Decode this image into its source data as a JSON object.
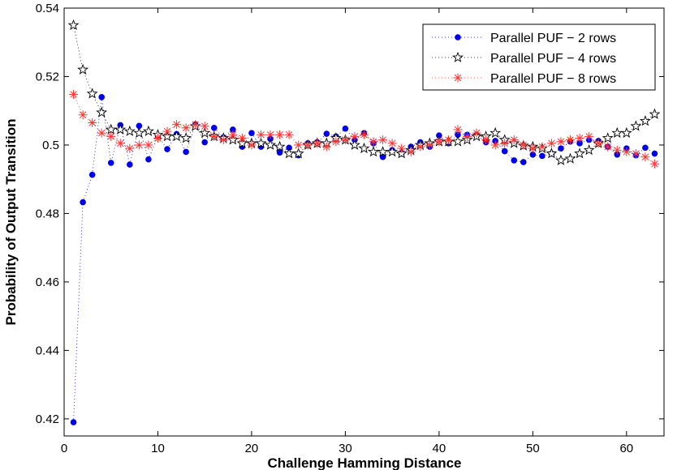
{
  "chart_data": {
    "type": "line",
    "xlabel": "Challenge Hamming Distance",
    "ylabel": "Probability of Output Transition",
    "xlim": [
      0,
      64
    ],
    "ylim": [
      0.415,
      0.54
    ],
    "xticks": [
      0,
      10,
      20,
      30,
      40,
      50,
      60
    ],
    "yticks": [
      0.42,
      0.44,
      0.46,
      0.48,
      0.5,
      0.52,
      0.54
    ],
    "xtick_labels": [
      "0",
      "10",
      "20",
      "30",
      "40",
      "50",
      "60"
    ],
    "ytick_labels": [
      "0.42",
      "0.44",
      "0.46",
      "0.48",
      "0.5",
      "0.52",
      "0.54"
    ],
    "grid": false,
    "legend_position": "top-right",
    "x": [
      1,
      2,
      3,
      4,
      5,
      6,
      7,
      8,
      9,
      10,
      11,
      12,
      13,
      14,
      15,
      16,
      17,
      18,
      19,
      20,
      21,
      22,
      23,
      24,
      25,
      26,
      27,
      28,
      29,
      30,
      31,
      32,
      33,
      34,
      35,
      36,
      37,
      38,
      39,
      40,
      41,
      42,
      43,
      44,
      45,
      46,
      47,
      48,
      49,
      50,
      51,
      52,
      53,
      54,
      55,
      56,
      57,
      58,
      59,
      60,
      61,
      62,
      63
    ],
    "series": [
      {
        "name": "Parallel PUF - 2 rows",
        "marker": "dot",
        "color": "#0000ee",
        "values": [
          0.419,
          0.4833,
          0.4913,
          0.514,
          0.4948,
          0.5058,
          0.4943,
          0.5056,
          0.4958,
          0.5027,
          0.4988,
          0.5032,
          0.498,
          0.506,
          0.5008,
          0.505,
          0.5022,
          0.5045,
          0.4995,
          0.5035,
          0.4995,
          0.5018,
          0.4978,
          0.4992,
          0.497,
          0.5005,
          0.5008,
          0.5033,
          0.5025,
          0.5048,
          0.5015,
          0.5035,
          0.5005,
          0.4965,
          0.4985,
          0.4975,
          0.4995,
          0.5008,
          0.4995,
          0.5028,
          0.5005,
          0.503,
          0.503,
          0.503,
          0.5008,
          0.5012,
          0.4982,
          0.4955,
          0.495,
          0.4972,
          0.4968,
          0.4975,
          0.499,
          0.501,
          0.5005,
          0.5015,
          0.5012,
          0.4995,
          0.4972,
          0.499,
          0.497,
          0.4992,
          0.4975
        ]
      },
      {
        "name": "Parallel PUF - 4 rows",
        "marker": "star",
        "color": "#000000",
        "values": [
          0.535,
          0.522,
          0.515,
          0.5095,
          0.5045,
          0.5045,
          0.504,
          0.5035,
          0.504,
          0.503,
          0.5025,
          0.5025,
          0.502,
          0.5055,
          0.5035,
          0.5025,
          0.502,
          0.5015,
          0.5005,
          0.5005,
          0.5005,
          0.5,
          0.4995,
          0.4975,
          0.4975,
          0.5,
          0.5005,
          0.5005,
          0.502,
          0.5015,
          0.5,
          0.499,
          0.498,
          0.498,
          0.498,
          0.4975,
          0.4985,
          0.5,
          0.5005,
          0.501,
          0.501,
          0.501,
          0.5015,
          0.5025,
          0.5025,
          0.5035,
          0.5015,
          0.5005,
          0.4998,
          0.4995,
          0.499,
          0.4975,
          0.4955,
          0.496,
          0.4975,
          0.4985,
          0.5005,
          0.502,
          0.5035,
          0.5035,
          0.5055,
          0.507,
          0.509
        ]
      },
      {
        "name": "Parallel PUF - 8 rows",
        "marker": "asterisk",
        "color": "#ff3333",
        "values": [
          0.5148,
          0.5088,
          0.5065,
          0.5035,
          0.5025,
          0.5005,
          0.499,
          0.5,
          0.5,
          0.502,
          0.504,
          0.506,
          0.505,
          0.506,
          0.5055,
          0.5025,
          0.5015,
          0.503,
          0.502,
          0.5,
          0.503,
          0.503,
          0.503,
          0.503,
          0.5,
          0.5,
          0.5005,
          0.4995,
          0.501,
          0.5015,
          0.5025,
          0.503,
          0.501,
          0.5015,
          0.5005,
          0.499,
          0.498,
          0.4995,
          0.5,
          0.501,
          0.5015,
          0.5045,
          0.5025,
          0.5035,
          0.5015,
          0.5,
          0.5005,
          0.5015,
          0.5,
          0.499,
          0.4995,
          0.5005,
          0.501,
          0.5015,
          0.502,
          0.5025,
          0.5005,
          0.4995,
          0.4985,
          0.498,
          0.4975,
          0.4965,
          0.4945
        ]
      }
    ]
  }
}
